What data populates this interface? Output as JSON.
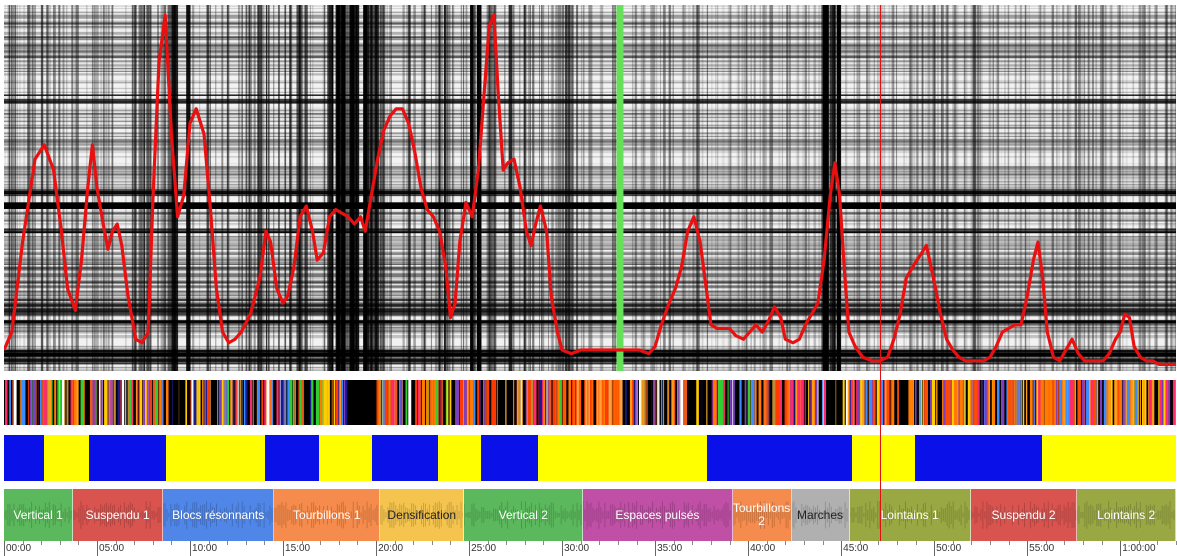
{
  "timeline": {
    "total_seconds": 3780,
    "ticks": [
      {
        "t": 0,
        "label": "00:00"
      },
      {
        "t": 300,
        "label": "05:00"
      },
      {
        "t": 600,
        "label": "10:00"
      },
      {
        "t": 900,
        "label": "15:00"
      },
      {
        "t": 1200,
        "label": "20:00"
      },
      {
        "t": 1500,
        "label": "25:00"
      },
      {
        "t": 1800,
        "label": "30:00"
      },
      {
        "t": 2100,
        "label": "35:00"
      },
      {
        "t": 2400,
        "label": "40:00"
      },
      {
        "t": 2700,
        "label": "45:00"
      },
      {
        "t": 3000,
        "label": "50:00"
      },
      {
        "t": 3300,
        "label": "55:00"
      },
      {
        "t": 3600,
        "label": "1:00:00"
      }
    ]
  },
  "playhead_seconds": 2825,
  "green_marker_seconds": 1985,
  "segments": [
    {
      "label": "Vertical 1",
      "start": 0,
      "end": 223,
      "color": "#5cb85c"
    },
    {
      "label": "Suspendu 1",
      "start": 223,
      "end": 513,
      "color": "#d9534f"
    },
    {
      "label": "Blocs résonnants",
      "start": 513,
      "end": 872,
      "color": "#4f86e8"
    },
    {
      "label": "Tourbillons 1",
      "start": 872,
      "end": 1213,
      "color": "#f58b4c"
    },
    {
      "label": "Densification",
      "start": 1213,
      "end": 1485,
      "color": "#f4c44f"
    },
    {
      "label": "Vertical 2",
      "start": 1485,
      "end": 1868,
      "color": "#5cb85c"
    },
    {
      "label": "Espaces pulsés",
      "start": 1868,
      "end": 2350,
      "color": "#c04fa6"
    },
    {
      "label": "Tourbillons 2",
      "start": 2350,
      "end": 2540,
      "color": "#f58b4c"
    },
    {
      "label": "Marches",
      "start": 2540,
      "end": 2727,
      "color": "#b0b0b0"
    },
    {
      "label": "Lointains 1",
      "start": 2727,
      "end": 3118,
      "color": "#9aa844"
    },
    {
      "label": "Suspendu 2",
      "start": 3118,
      "end": 3462,
      "color": "#d9534f"
    },
    {
      "label": "Lointains 2",
      "start": 3462,
      "end": 3780,
      "color": "#9aa844"
    }
  ],
  "binary_blocks": [
    {
      "start": 0,
      "end": 130,
      "state": "blue"
    },
    {
      "start": 130,
      "end": 275,
      "state": "yellow"
    },
    {
      "start": 275,
      "end": 522,
      "state": "blue"
    },
    {
      "start": 522,
      "end": 842,
      "state": "yellow"
    },
    {
      "start": 842,
      "end": 1016,
      "state": "blue"
    },
    {
      "start": 1016,
      "end": 1187,
      "state": "yellow"
    },
    {
      "start": 1187,
      "end": 1400,
      "state": "blue"
    },
    {
      "start": 1400,
      "end": 1540,
      "state": "yellow"
    },
    {
      "start": 1540,
      "end": 1722,
      "state": "blue"
    },
    {
      "start": 1722,
      "end": 2268,
      "state": "yellow"
    },
    {
      "start": 2268,
      "end": 2734,
      "state": "blue"
    },
    {
      "start": 2734,
      "end": 2938,
      "state": "yellow"
    },
    {
      "start": 2938,
      "end": 3348,
      "state": "blue"
    },
    {
      "start": 3348,
      "end": 3780,
      "state": "yellow"
    }
  ],
  "colors": {
    "curve": "#e81010",
    "playhead": "#e01010",
    "green_marker": "#66e05a",
    "blue": "#0a10e8",
    "yellow": "#ffff00"
  },
  "novelty_curve": [
    [
      0,
      0.05
    ],
    [
      25,
      0.1
    ],
    [
      60,
      0.35
    ],
    [
      100,
      0.58
    ],
    [
      130,
      0.62
    ],
    [
      160,
      0.55
    ],
    [
      185,
      0.38
    ],
    [
      205,
      0.22
    ],
    [
      230,
      0.16
    ],
    [
      250,
      0.3
    ],
    [
      270,
      0.5
    ],
    [
      285,
      0.62
    ],
    [
      300,
      0.5
    ],
    [
      320,
      0.4
    ],
    [
      335,
      0.33
    ],
    [
      350,
      0.38
    ],
    [
      365,
      0.4
    ],
    [
      380,
      0.34
    ],
    [
      400,
      0.2
    ],
    [
      425,
      0.08
    ],
    [
      445,
      0.07
    ],
    [
      465,
      0.1
    ],
    [
      480,
      0.46
    ],
    [
      500,
      0.85
    ],
    [
      520,
      0.98
    ],
    [
      540,
      0.65
    ],
    [
      560,
      0.42
    ],
    [
      580,
      0.48
    ],
    [
      600,
      0.68
    ],
    [
      620,
      0.72
    ],
    [
      645,
      0.65
    ],
    [
      665,
      0.45
    ],
    [
      685,
      0.22
    ],
    [
      705,
      0.1
    ],
    [
      725,
      0.07
    ],
    [
      745,
      0.08
    ],
    [
      765,
      0.1
    ],
    [
      795,
      0.15
    ],
    [
      825,
      0.25
    ],
    [
      845,
      0.38
    ],
    [
      860,
      0.35
    ],
    [
      880,
      0.22
    ],
    [
      900,
      0.18
    ],
    [
      915,
      0.2
    ],
    [
      935,
      0.28
    ],
    [
      955,
      0.42
    ],
    [
      975,
      0.45
    ],
    [
      995,
      0.38
    ],
    [
      1010,
      0.3
    ],
    [
      1030,
      0.32
    ],
    [
      1050,
      0.42
    ],
    [
      1070,
      0.44
    ],
    [
      1090,
      0.43
    ],
    [
      1110,
      0.42
    ],
    [
      1130,
      0.4
    ],
    [
      1150,
      0.42
    ],
    [
      1165,
      0.38
    ],
    [
      1185,
      0.48
    ],
    [
      1205,
      0.58
    ],
    [
      1225,
      0.66
    ],
    [
      1245,
      0.7
    ],
    [
      1265,
      0.72
    ],
    [
      1285,
      0.72
    ],
    [
      1305,
      0.68
    ],
    [
      1325,
      0.6
    ],
    [
      1345,
      0.5
    ],
    [
      1365,
      0.44
    ],
    [
      1385,
      0.42
    ],
    [
      1405,
      0.38
    ],
    [
      1425,
      0.28
    ],
    [
      1440,
      0.14
    ],
    [
      1455,
      0.18
    ],
    [
      1470,
      0.35
    ],
    [
      1490,
      0.46
    ],
    [
      1510,
      0.42
    ],
    [
      1530,
      0.55
    ],
    [
      1550,
      0.78
    ],
    [
      1565,
      0.95
    ],
    [
      1580,
      0.98
    ],
    [
      1595,
      0.75
    ],
    [
      1610,
      0.55
    ],
    [
      1625,
      0.57
    ],
    [
      1645,
      0.58
    ],
    [
      1665,
      0.5
    ],
    [
      1685,
      0.38
    ],
    [
      1700,
      0.34
    ],
    [
      1715,
      0.4
    ],
    [
      1730,
      0.45
    ],
    [
      1750,
      0.38
    ],
    [
      1765,
      0.2
    ],
    [
      1785,
      0.1
    ],
    [
      1800,
      0.05
    ],
    [
      1830,
      0.04
    ],
    [
      1860,
      0.05
    ],
    [
      1880,
      0.05
    ],
    [
      1905,
      0.05
    ],
    [
      1935,
      0.05
    ],
    [
      1960,
      0.05
    ],
    [
      1985,
      0.05
    ],
    [
      2020,
      0.05
    ],
    [
      2050,
      0.05
    ],
    [
      2080,
      0.04
    ],
    [
      2100,
      0.06
    ],
    [
      2120,
      0.12
    ],
    [
      2145,
      0.18
    ],
    [
      2165,
      0.22
    ],
    [
      2185,
      0.28
    ],
    [
      2205,
      0.38
    ],
    [
      2225,
      0.42
    ],
    [
      2245,
      0.35
    ],
    [
      2265,
      0.22
    ],
    [
      2280,
      0.12
    ],
    [
      2300,
      0.11
    ],
    [
      2320,
      0.11
    ],
    [
      2340,
      0.11
    ],
    [
      2360,
      0.09
    ],
    [
      2385,
      0.08
    ],
    [
      2405,
      0.1
    ],
    [
      2425,
      0.12
    ],
    [
      2445,
      0.1
    ],
    [
      2465,
      0.13
    ],
    [
      2485,
      0.17
    ],
    [
      2505,
      0.14
    ],
    [
      2520,
      0.08
    ],
    [
      2545,
      0.07
    ],
    [
      2565,
      0.08
    ],
    [
      2585,
      0.12
    ],
    [
      2605,
      0.15
    ],
    [
      2625,
      0.18
    ],
    [
      2645,
      0.3
    ],
    [
      2665,
      0.48
    ],
    [
      2680,
      0.57
    ],
    [
      2695,
      0.48
    ],
    [
      2710,
      0.28
    ],
    [
      2725,
      0.1
    ],
    [
      2745,
      0.06
    ],
    [
      2770,
      0.03
    ],
    [
      2800,
      0.02
    ],
    [
      2825,
      0.02
    ],
    [
      2850,
      0.03
    ],
    [
      2870,
      0.08
    ],
    [
      2890,
      0.15
    ],
    [
      2910,
      0.25
    ],
    [
      2930,
      0.28
    ],
    [
      2945,
      0.3
    ],
    [
      2960,
      0.32
    ],
    [
      2975,
      0.34
    ],
    [
      2990,
      0.28
    ],
    [
      3005,
      0.22
    ],
    [
      3020,
      0.15
    ],
    [
      3040,
      0.08
    ],
    [
      3060,
      0.05
    ],
    [
      3080,
      0.03
    ],
    [
      3100,
      0.02
    ],
    [
      3120,
      0.02
    ],
    [
      3140,
      0.02
    ],
    [
      3160,
      0.02
    ],
    [
      3180,
      0.03
    ],
    [
      3200,
      0.06
    ],
    [
      3220,
      0.1
    ],
    [
      3240,
      0.11
    ],
    [
      3260,
      0.12
    ],
    [
      3280,
      0.12
    ],
    [
      3300,
      0.2
    ],
    [
      3320,
      0.3
    ],
    [
      3335,
      0.35
    ],
    [
      3350,
      0.25
    ],
    [
      3365,
      0.1
    ],
    [
      3385,
      0.03
    ],
    [
      3405,
      0.02
    ],
    [
      3425,
      0.05
    ],
    [
      3445,
      0.08
    ],
    [
      3465,
      0.04
    ],
    [
      3485,
      0.02
    ],
    [
      3505,
      0.02
    ],
    [
      3525,
      0.02
    ],
    [
      3545,
      0.02
    ],
    [
      3565,
      0.04
    ],
    [
      3585,
      0.08
    ],
    [
      3600,
      0.1
    ],
    [
      3615,
      0.15
    ],
    [
      3630,
      0.14
    ],
    [
      3645,
      0.06
    ],
    [
      3665,
      0.03
    ],
    [
      3685,
      0.02
    ],
    [
      3705,
      0.02
    ],
    [
      3725,
      0.01
    ],
    [
      3745,
      0.01
    ],
    [
      3780,
      0.01
    ]
  ]
}
